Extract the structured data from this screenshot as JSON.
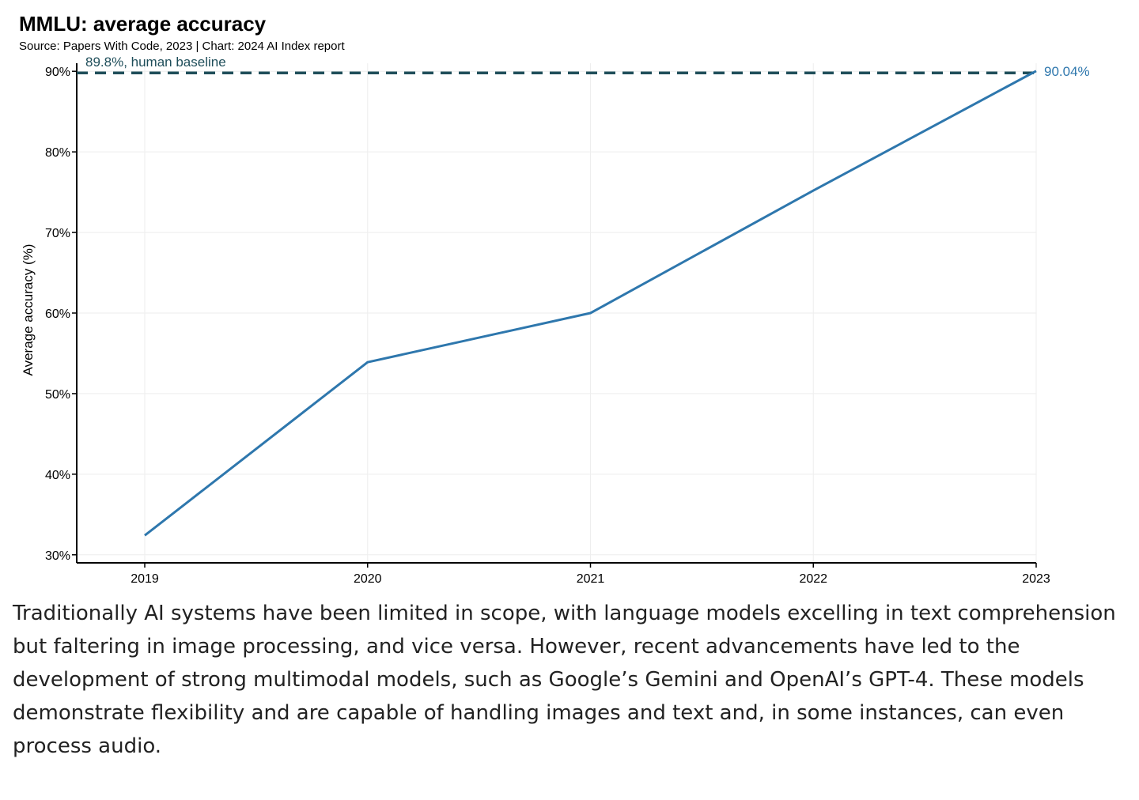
{
  "chart_data": {
    "type": "line",
    "title": "MMLU: average accuracy",
    "subtitle": "Source: Papers With Code, 2023 | Chart: 2024 AI Index report",
    "xlabel": "",
    "ylabel": "Average accuracy (%)",
    "x": [
      "2019",
      "2020",
      "2021",
      "2022",
      "2023"
    ],
    "series": [
      {
        "values": [
          32.4,
          53.9,
          60.0,
          75.2,
          90.04
        ]
      }
    ],
    "ylim": [
      29,
      91
    ],
    "yticks": [
      30,
      40,
      50,
      60,
      70,
      80,
      90
    ],
    "ytick_labels": [
      "30%",
      "40%",
      "50%",
      "60%",
      "70%",
      "80%",
      "90%"
    ],
    "end_label": "90.04%",
    "reference_line": {
      "value": 89.8,
      "label": "89.8%, human baseline"
    },
    "grid": true,
    "colors": {
      "series": "#2e77ad",
      "reference": "#1f4e5a",
      "grid": "#eeeeee",
      "axis": "#000000"
    }
  },
  "body_text": "Traditionally AI systems have been limited in scope, with language models excelling in text comprehension but faltering in image processing, and vice versa. However, recent advancements have led to the development of strong multimodal models, such as Google’s Gemini and OpenAI’s GPT-4. These models demonstrate flexibility and are capable of handling images and text and, in some instances, can even process audio."
}
